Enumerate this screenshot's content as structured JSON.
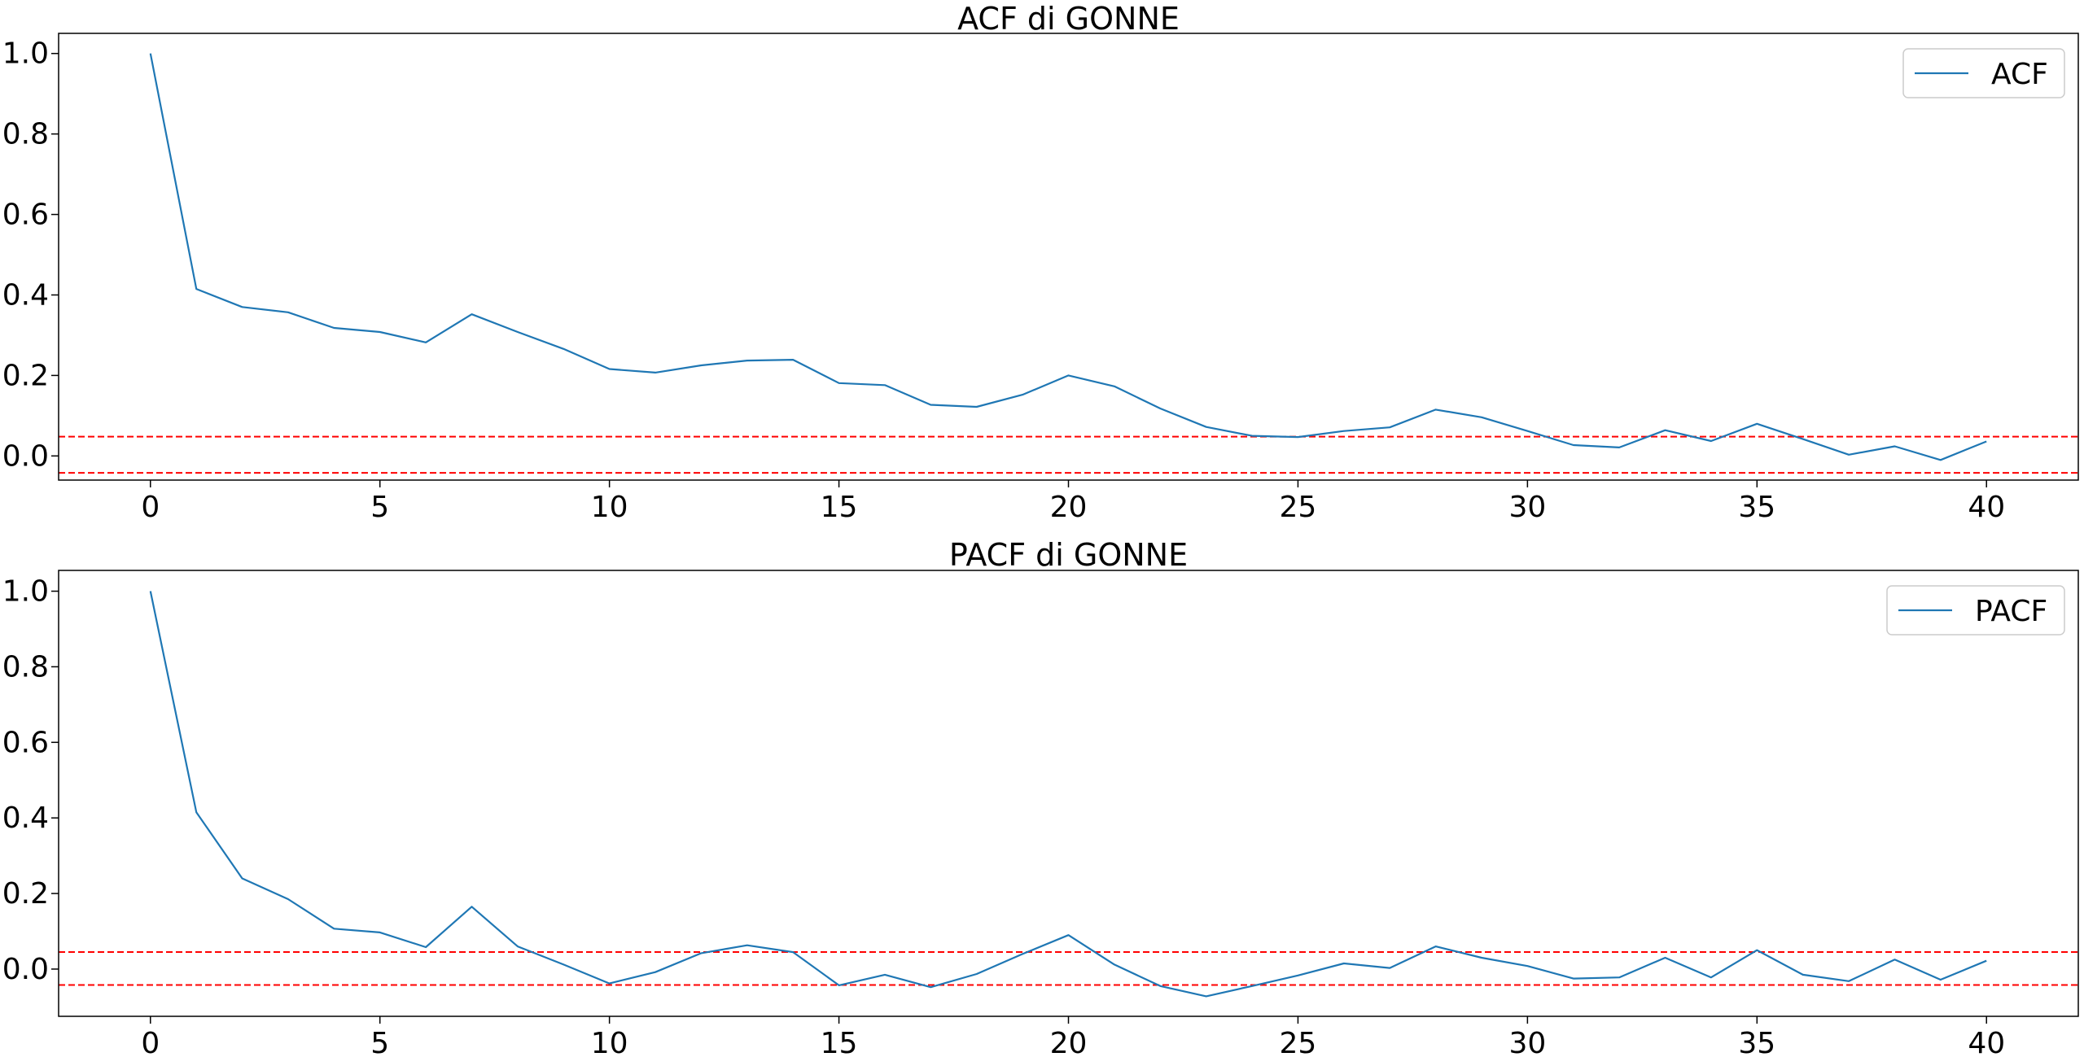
{
  "chart_data": [
    {
      "type": "line",
      "title": "ACF di GONNE",
      "xlabel": "",
      "ylabel": "",
      "xlim": [
        -2,
        42
      ],
      "ylim": [
        -0.06,
        1.05
      ],
      "xticks": [
        0,
        5,
        10,
        15,
        20,
        25,
        30,
        35,
        40
      ],
      "xtick_labels": [
        "0",
        "5",
        "10",
        "15",
        "20",
        "25",
        "30",
        "35",
        "40"
      ],
      "yticks": [
        0.0,
        0.2,
        0.4,
        0.6,
        0.8,
        1.0
      ],
      "ytick_labels": [
        "0.0",
        "0.2",
        "0.4",
        "0.6",
        "0.8",
        "1.0"
      ],
      "grid": false,
      "legend_position": "top-right",
      "series": [
        {
          "name": "ACF",
          "color": "#1f77b4",
          "x": [
            0,
            1,
            2,
            3,
            4,
            5,
            6,
            7,
            8,
            9,
            10,
            11,
            12,
            13,
            14,
            15,
            16,
            17,
            18,
            19,
            20,
            21,
            22,
            23,
            24,
            25,
            26,
            27,
            28,
            29,
            30,
            31,
            32,
            33,
            34,
            35,
            36,
            37,
            38,
            39,
            40
          ],
          "y": [
            1.0,
            0.415,
            0.37,
            0.357,
            0.318,
            0.308,
            0.282,
            0.352,
            0.308,
            0.266,
            0.216,
            0.207,
            0.225,
            0.237,
            0.239,
            0.181,
            0.176,
            0.127,
            0.122,
            0.152,
            0.2,
            0.173,
            0.118,
            0.072,
            0.05,
            0.047,
            0.062,
            0.071,
            0.115,
            0.096,
            0.062,
            0.027,
            0.021,
            0.064,
            0.037,
            0.08,
            0.042,
            0.003,
            0.024,
            -0.01,
            0.036
          ]
        }
      ],
      "reference_lines": [
        {
          "y": 0.048,
          "color": "#ff0000",
          "style": "dashed"
        },
        {
          "y": -0.042,
          "color": "#ff0000",
          "style": "dashed"
        }
      ]
    },
    {
      "type": "line",
      "title": "PACF di GONNE",
      "xlabel": "",
      "ylabel": "",
      "xlim": [
        -2,
        42
      ],
      "ylim": [
        -0.125,
        1.055
      ],
      "xticks": [
        0,
        5,
        10,
        15,
        20,
        25,
        30,
        35,
        40
      ],
      "xtick_labels": [
        "0",
        "5",
        "10",
        "15",
        "20",
        "25",
        "30",
        "35",
        "40"
      ],
      "yticks": [
        0.0,
        0.2,
        0.4,
        0.6,
        0.8,
        1.0
      ],
      "ytick_labels": [
        "0.0",
        "0.2",
        "0.4",
        "0.6",
        "0.8",
        "1.0"
      ],
      "grid": false,
      "legend_position": "top-right",
      "series": [
        {
          "name": "PACF",
          "color": "#1f77b4",
          "x": [
            0,
            1,
            2,
            3,
            4,
            5,
            6,
            7,
            8,
            9,
            10,
            11,
            12,
            13,
            14,
            15,
            16,
            17,
            18,
            19,
            20,
            21,
            22,
            23,
            24,
            25,
            26,
            27,
            28,
            29,
            30,
            31,
            32,
            33,
            34,
            35,
            36,
            37,
            38,
            39,
            40
          ],
          "y": [
            1.0,
            0.415,
            0.24,
            0.185,
            0.107,
            0.097,
            0.058,
            0.165,
            0.06,
            0.012,
            -0.038,
            -0.008,
            0.042,
            0.063,
            0.045,
            -0.043,
            -0.015,
            -0.048,
            -0.013,
            0.04,
            0.09,
            0.012,
            -0.045,
            -0.072,
            -0.045,
            -0.017,
            0.015,
            0.003,
            0.06,
            0.03,
            0.008,
            -0.025,
            -0.022,
            0.03,
            -0.022,
            0.05,
            -0.015,
            -0.032,
            0.025,
            -0.028,
            0.022
          ]
        }
      ],
      "reference_lines": [
        {
          "y": 0.045,
          "color": "#ff0000",
          "style": "dashed"
        },
        {
          "y": -0.042,
          "color": "#ff0000",
          "style": "dashed"
        }
      ]
    }
  ]
}
